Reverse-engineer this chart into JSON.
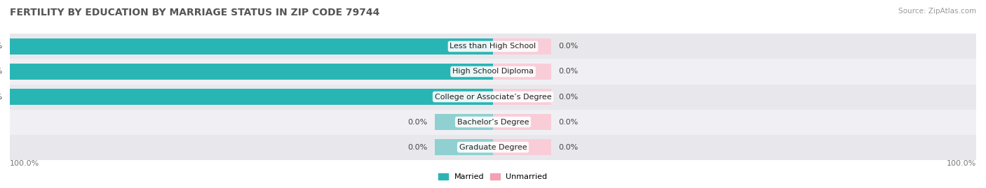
{
  "title": "FERTILITY BY EDUCATION BY MARRIAGE STATUS IN ZIP CODE 79744",
  "source": "Source: ZipAtlas.com",
  "categories": [
    "Less than High School",
    "High School Diploma",
    "College or Associate’s Degree",
    "Bachelor’s Degree",
    "Graduate Degree"
  ],
  "married_values": [
    100.0,
    100.0,
    100.0,
    0.0,
    0.0
  ],
  "unmarried_values": [
    0.0,
    0.0,
    0.0,
    0.0,
    0.0
  ],
  "married_color": "#2ab5b5",
  "unmarried_color": "#f4a0b5",
  "married_light_color": "#90d0d0",
  "unmarried_light_color": "#f9cdd8",
  "row_colors": [
    "#e8e8ec",
    "#f0f0f4"
  ],
  "axis_label_left": "100.0%",
  "axis_label_right": "100.0%",
  "title_fontsize": 10,
  "label_fontsize": 8,
  "tick_fontsize": 8,
  "background_color": "#ffffff",
  "small_bar_width": 12,
  "max_val": 100
}
